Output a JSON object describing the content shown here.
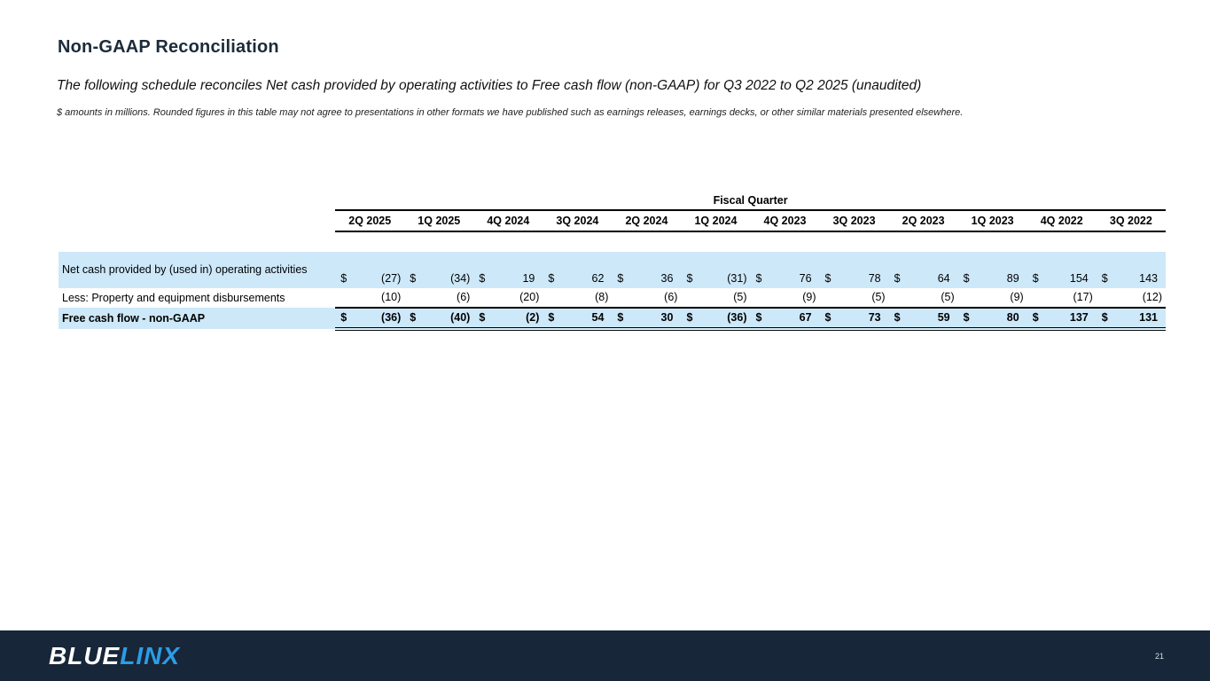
{
  "slide": {
    "title": "Non-GAAP Reconciliation",
    "subtitle": "The following schedule reconciles Net cash provided by operating activities to Free cash flow (non-GAAP) for Q3 2022 to Q2 2025 (unaudited)",
    "note": "$ amounts in millions.  Rounded figures in this table may not agree to presentations in other formats we have published such as earnings releases, earnings decks, or other similar materials presented elsewhere.",
    "page_number": "21"
  },
  "footer": {
    "logo_part1": "BLUE",
    "logo_part2": "LINX"
  },
  "colors": {
    "highlight_blue": "#cde8f9",
    "footer_navy": "#172638",
    "logo_blue": "#2b9de6",
    "title_navy": "#1c2b3a"
  },
  "table": {
    "group_header": "Fiscal Quarter",
    "currency_symbol": "$",
    "columns": [
      "2Q 2025",
      "1Q 2025",
      "4Q 2024",
      "3Q 2024",
      "2Q 2024",
      "1Q 2024",
      "4Q 2023",
      "3Q 2023",
      "2Q 2023",
      "1Q 2023",
      "4Q 2022",
      "3Q 2022"
    ],
    "rows": [
      {
        "label": "Net cash provided by (used in) operating activities",
        "dollar": true,
        "highlight": true,
        "bold": false,
        "underline": "none",
        "values": [
          "(27)",
          "(34)",
          "19",
          "62",
          "36",
          "(31)",
          "76",
          "78",
          "64",
          "89",
          "154",
          "143"
        ]
      },
      {
        "label": "Less: Property and equipment disbursements",
        "dollar": false,
        "highlight": false,
        "bold": false,
        "underline": "single",
        "values": [
          "(10)",
          "(6)",
          "(20)",
          "(8)",
          "(6)",
          "(5)",
          "(9)",
          "(5)",
          "(5)",
          "(9)",
          "(17)",
          "(12)"
        ]
      },
      {
        "label": "Free cash flow - non-GAAP",
        "dollar": true,
        "highlight": true,
        "bold": true,
        "underline": "double",
        "values": [
          "(36)",
          "(40)",
          "(2)",
          "54",
          "30",
          "(36)",
          "67",
          "73",
          "59",
          "80",
          "137",
          "131"
        ]
      }
    ]
  }
}
